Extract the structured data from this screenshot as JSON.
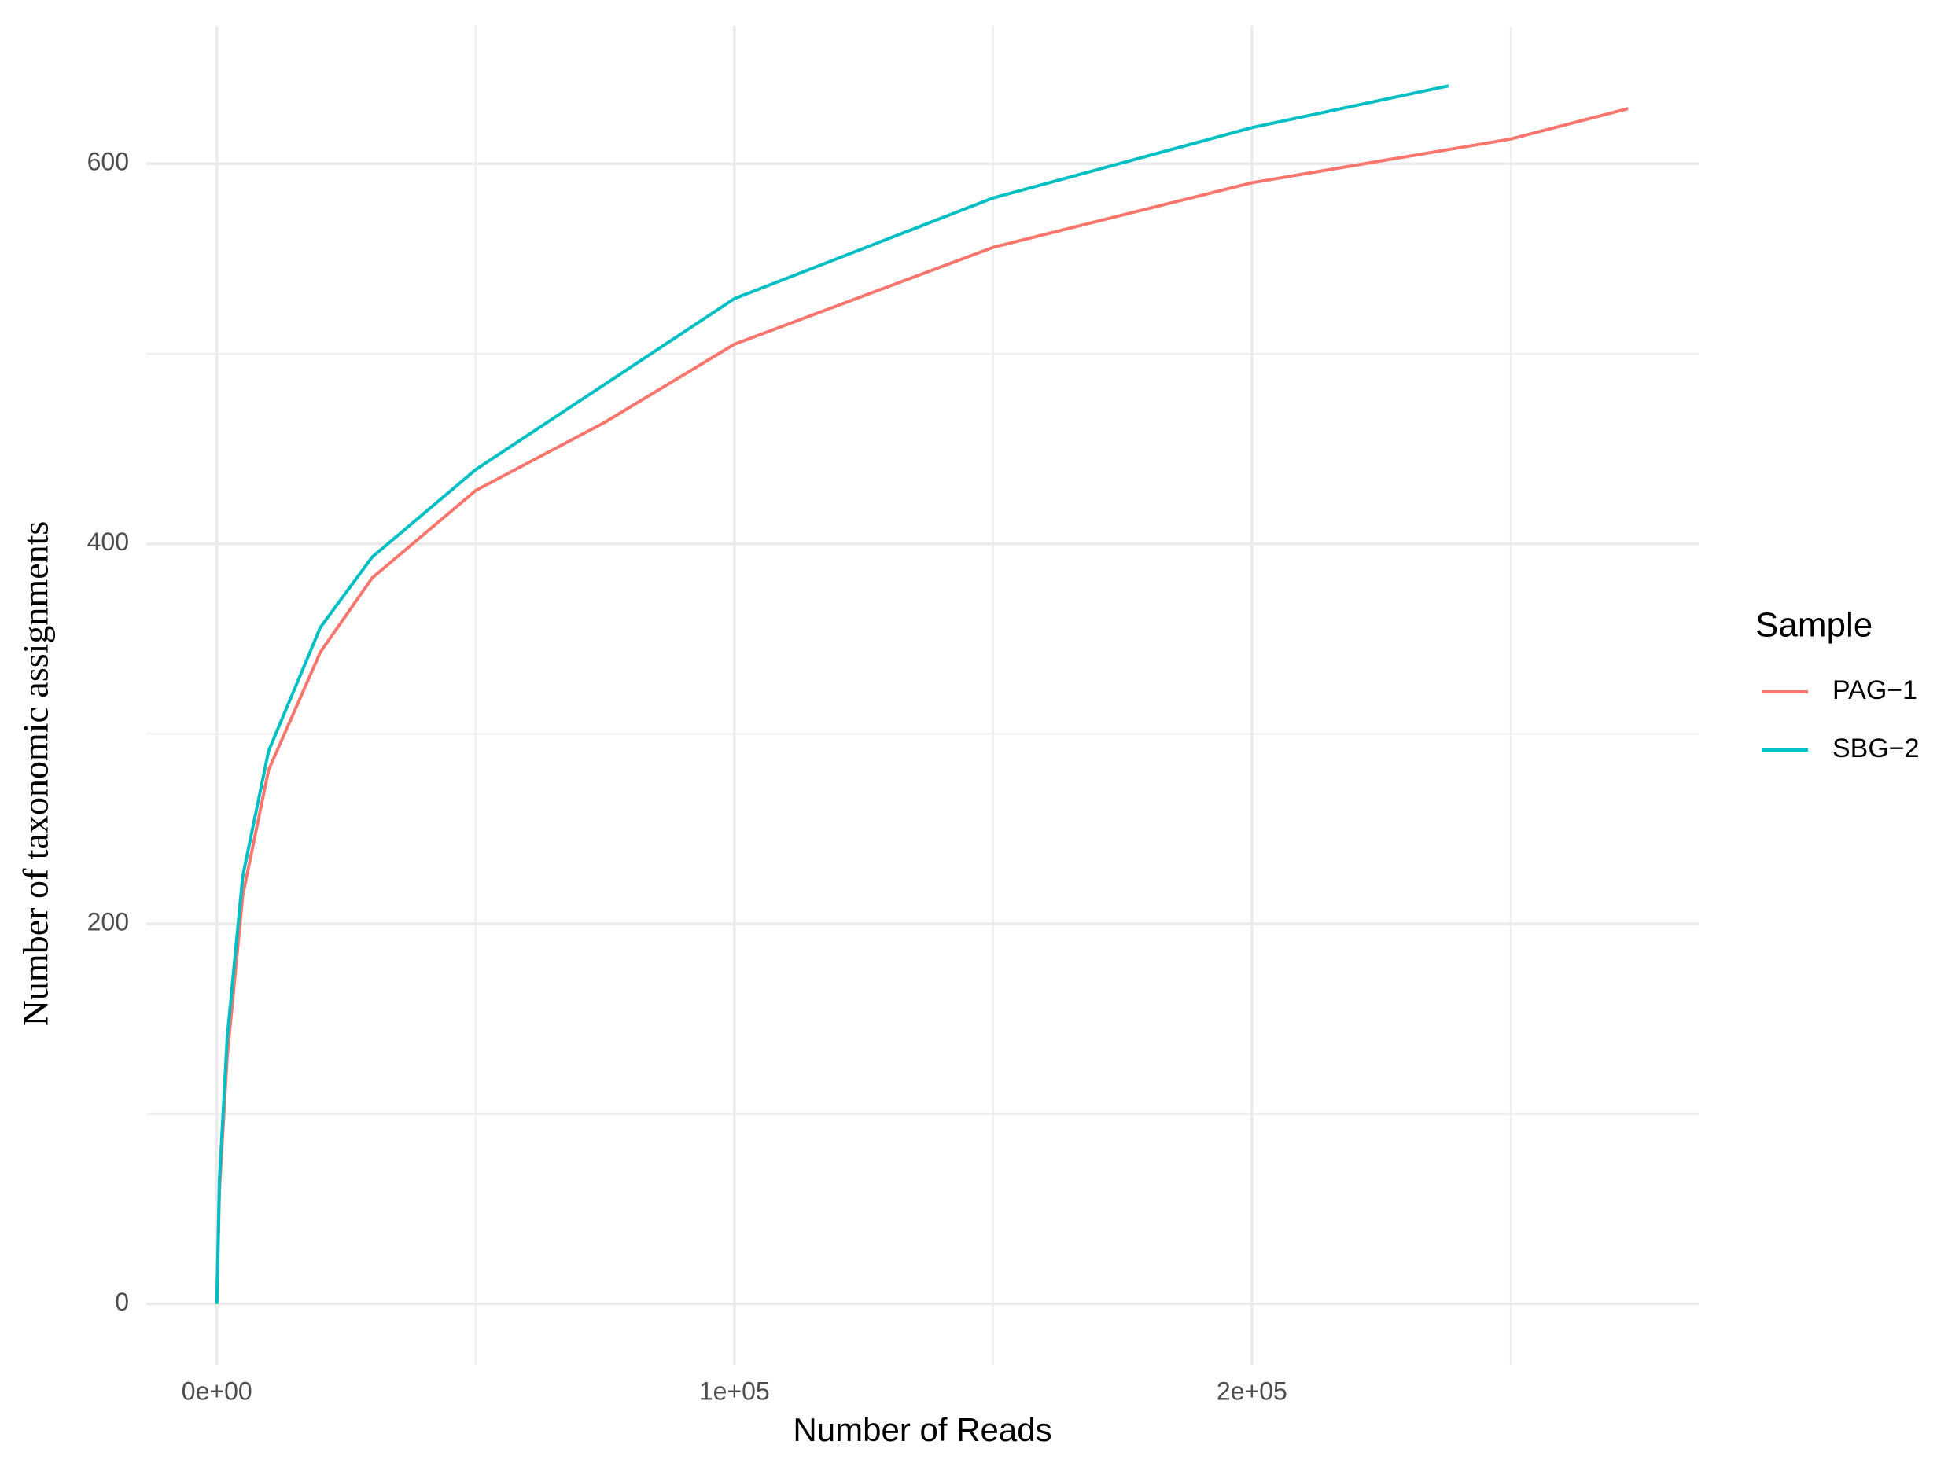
{
  "chart_data": {
    "type": "line",
    "x_label": "Number of Reads",
    "y_label": "Number of taxonomic assignments",
    "legend_title": "Sample",
    "legend": "right",
    "grid": true,
    "xlim": [
      -13635,
      286335
    ],
    "ylim": [
      -32,
      672.5
    ],
    "xticks": [
      {
        "value": 0,
        "label": "0e+00"
      },
      {
        "value": 100000,
        "label": "1e+05"
      },
      {
        "value": 200000,
        "label": "2e+05"
      }
    ],
    "xminor": [
      50000,
      150000,
      250000
    ],
    "yticks": [
      0,
      200,
      400,
      600
    ],
    "yminor": [
      100,
      300,
      500
    ],
    "series": [
      {
        "name": "PAG−1",
        "color": "#F8766D",
        "x": [
          0,
          500,
          2000,
          5000,
          10000,
          20000,
          30000,
          50000,
          75000,
          100000,
          150000,
          200000,
          250000,
          272700
        ],
        "values": [
          0,
          60,
          130,
          215,
          281,
          343,
          382,
          428,
          464,
          505,
          556,
          590,
          613,
          629
        ]
      },
      {
        "name": "SBG−2",
        "color": "#00BFC4",
        "x": [
          0,
          500,
          2000,
          5000,
          10000,
          20000,
          30000,
          50000,
          75000,
          100000,
          150000,
          200000,
          238000
        ],
        "values": [
          0,
          65,
          140,
          225,
          291,
          356,
          393,
          439,
          484,
          529,
          582,
          619,
          641
        ]
      }
    ]
  }
}
